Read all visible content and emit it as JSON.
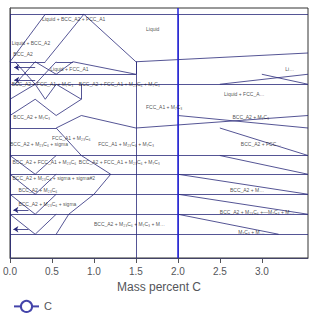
{
  "chart_data": {
    "type": "line",
    "xlabel": "Mass percent C",
    "xlim": [
      0.0,
      3.55
    ],
    "ylim": [
      0.0,
      1.0
    ],
    "xticks": [
      {
        "value": 0.0,
        "label": "0.0"
      },
      0.5,
      {
        "value": 1.0,
        "label": "1.0"
      },
      1.5,
      {
        "value": 2.0,
        "label": "2.0"
      },
      2.5,
      {
        "value": 3.0,
        "label": "3.0"
      }
    ],
    "tick_labels": "x",
    "grid": false,
    "legend": "lower left",
    "series": [
      {
        "type": "segments",
        "color": "#2a2a7a",
        "values": [
          [
            0.0,
            0.975,
            3.55,
            0.975
          ],
          [
            0.0,
            0.0,
            0.0,
            0.975
          ],
          [
            0.0,
            0.785,
            0.42,
            0.975
          ],
          [
            0.42,
            0.975,
            0.88,
            0.975
          ],
          [
            0.88,
            0.975,
            1.5,
            0.785
          ],
          [
            1.5,
            0.785,
            3.55,
            0.82
          ],
          [
            0.0,
            0.785,
            0.42,
            0.785
          ],
          [
            0.42,
            0.785,
            0.88,
            0.975
          ],
          [
            0.0,
            0.735,
            1.5,
            0.735
          ],
          [
            0.0,
            0.735,
            0.0,
            0.785
          ],
          [
            0.0,
            0.695,
            3.55,
            0.695
          ],
          [
            0.0,
            0.695,
            0.0,
            0.735
          ],
          [
            0.06,
            0.785,
            0.3,
            0.695
          ],
          [
            0.06,
            0.695,
            0.3,
            0.785
          ],
          [
            0.3,
            0.785,
            0.55,
            0.735
          ],
          [
            0.3,
            0.695,
            0.55,
            0.785
          ],
          [
            0.55,
            0.785,
            0.75,
            0.785
          ],
          [
            0.55,
            0.735,
            0.75,
            0.785
          ],
          [
            0.75,
            0.785,
            1.5,
            0.735
          ],
          [
            1.5,
            0.735,
            1.5,
            0.785
          ],
          [
            0.0,
            0.635,
            0.3,
            0.695
          ],
          [
            0.3,
            0.695,
            0.42,
            0.635
          ],
          [
            0.42,
            0.635,
            0.55,
            0.695
          ],
          [
            0.55,
            0.695,
            0.85,
            0.635
          ],
          [
            0.85,
            0.635,
            0.85,
            0.695
          ],
          [
            0.0,
            0.57,
            0.3,
            0.635
          ],
          [
            0.3,
            0.635,
            0.55,
            0.57
          ],
          [
            0.55,
            0.57,
            0.85,
            0.635
          ],
          [
            0.0,
            0.57,
            0.0,
            0.635
          ],
          [
            0.0,
            0.52,
            0.55,
            0.52
          ],
          [
            0.55,
            0.52,
            0.85,
            0.57
          ],
          [
            0.0,
            0.52,
            0.0,
            0.57
          ],
          [
            0.85,
            0.57,
            1.5,
            0.52
          ],
          [
            1.5,
            0.52,
            3.55,
            0.57
          ],
          [
            1.5,
            0.0,
            1.5,
            0.785
          ],
          [
            2.0,
            0.0,
            2.0,
            0.975
          ],
          [
            0.0,
            0.41,
            3.55,
            0.41
          ],
          [
            0.0,
            0.335,
            3.55,
            0.335
          ],
          [
            0.0,
            0.255,
            3.55,
            0.255
          ],
          [
            0.0,
            0.175,
            3.55,
            0.175
          ],
          [
            0.0,
            0.095,
            3.55,
            0.095
          ],
          [
            0.0,
            0.0,
            3.55,
            0.0
          ],
          [
            0.55,
            0.52,
            0.85,
            0.41
          ],
          [
            0.85,
            0.41,
            1.2,
            0.335
          ],
          [
            1.2,
            0.335,
            1.0,
            0.255
          ],
          [
            1.0,
            0.255,
            0.7,
            0.175
          ],
          [
            0.7,
            0.175,
            0.55,
            0.095
          ],
          [
            0.0,
            0.41,
            0.3,
            0.335
          ],
          [
            0.3,
            0.335,
            0.55,
            0.41
          ],
          [
            0.0,
            0.335,
            0.3,
            0.255
          ],
          [
            0.3,
            0.255,
            0.55,
            0.335
          ],
          [
            0.0,
            0.255,
            0.3,
            0.175
          ],
          [
            0.3,
            0.175,
            0.55,
            0.255
          ],
          [
            0.0,
            0.175,
            0.3,
            0.095
          ],
          [
            0.3,
            0.095,
            0.55,
            0.175
          ],
          [
            2.5,
            0.695,
            3.55,
            0.735
          ],
          [
            3.0,
            0.735,
            3.55,
            0.695
          ],
          [
            2.0,
            0.57,
            3.55,
            0.52
          ],
          [
            2.5,
            0.52,
            3.55,
            0.41
          ],
          [
            2.5,
            0.41,
            3.55,
            0.335
          ],
          [
            2.0,
            0.335,
            3.55,
            0.255
          ],
          [
            2.0,
            0.255,
            3.55,
            0.175
          ],
          [
            2.0,
            0.175,
            3.2,
            0.095
          ]
        ]
      },
      {
        "type": "arrows",
        "color": "#2a2a7a",
        "values": [
          {
            "x": 0.3,
            "y": 0.762,
            "dx": -0.25,
            "dy": 0.0
          },
          {
            "x": 0.3,
            "y": 0.712,
            "dx": -0.25,
            "dy": 0.0
          },
          {
            "x": 0.22,
            "y": 0.192,
            "dx": -0.18,
            "dy": 0.0
          },
          {
            "x": 0.22,
            "y": 0.115,
            "dx": -0.18,
            "dy": 0.0
          }
        ]
      },
      {
        "type": "vline",
        "color": "#2222dd",
        "x": 2.0
      },
      {
        "type": "line",
        "name": "C",
        "color": "#4444aa",
        "values": []
      }
    ],
    "annotations": [
      {
        "text": "Liquid + BCC_A2 + FCC_A1",
        "x": 0.38,
        "y": 0.955
      },
      {
        "text": "Liquid",
        "x": 1.62,
        "y": 0.915
      },
      {
        "text": "Li…",
        "x": 3.28,
        "y": 0.755
      },
      {
        "text": "Liquid + BCC_A2",
        "x": 0.02,
        "y": 0.86
      },
      {
        "text": "BCC_A2",
        "x": 0.04,
        "y": 0.815
      },
      {
        "text": "Liquid + FCC_A1",
        "x": 0.48,
        "y": 0.755
      },
      {
        "text": "BCC_A2 + FCC_A1 + M₇C₃",
        "x": 0.02,
        "y": 0.695
      },
      {
        "text": "BCC_A2 + FCC_A1 + M₂₃C₆ + M₇C₃",
        "x": 0.82,
        "y": 0.695
      },
      {
        "text": "Liquid + FCC_A…",
        "x": 2.55,
        "y": 0.655
      },
      {
        "text": "FCC_A1 + M₇C₃",
        "x": 1.62,
        "y": 0.605
      },
      {
        "text": "BCC_A2 + M₇C₃",
        "x": 0.04,
        "y": 0.565
      },
      {
        "text": "BCC_A2 + M₇C₃",
        "x": 2.65,
        "y": 0.565
      },
      {
        "text": "FCC_A1 + M₂₃C₆",
        "x": 0.5,
        "y": 0.48
      },
      {
        "text": "BCC_A2 + M₂₃C₆ + sigma",
        "x": 0.0,
        "y": 0.455
      },
      {
        "text": "FCC_A1 + M₂₃C₆ + M₇C₃",
        "x": 1.05,
        "y": 0.455
      },
      {
        "text": "BCC_A2 + FCC…",
        "x": 2.75,
        "y": 0.455
      },
      {
        "text": "BCC_A2 + FCC_A1 + M₂₃C₆",
        "x": 0.03,
        "y": 0.385
      },
      {
        "text": "BCC_A2 + FCC_A1 + M₂₃C₆ + M₇C₃",
        "x": 0.82,
        "y": 0.385
      },
      {
        "text": "BCC_A2 + M₂₃C₆ + sigma + sigma#2",
        "x": 0.03,
        "y": 0.322
      },
      {
        "text": "BCC_A2 + M₂₃C₆",
        "x": 0.1,
        "y": 0.272
      },
      {
        "text": "BCC_A2 + M₂₃C₆ + sigma",
        "x": 0.1,
        "y": 0.215
      },
      {
        "text": "BCC_A2 + M…",
        "x": 2.62,
        "y": 0.272
      },
      {
        "text": "BCC_A2 + M₂₃C₆ + M₇C₃ + M…",
        "x": 1.0,
        "y": 0.135
      },
      {
        "text": "BCC_A2 + M₂₃C₆ +―M₇C₃ + M…",
        "x": 2.5,
        "y": 0.185
      },
      {
        "text": "M₇C₃ + M…",
        "x": 2.72,
        "y": 0.105
      }
    ]
  }
}
